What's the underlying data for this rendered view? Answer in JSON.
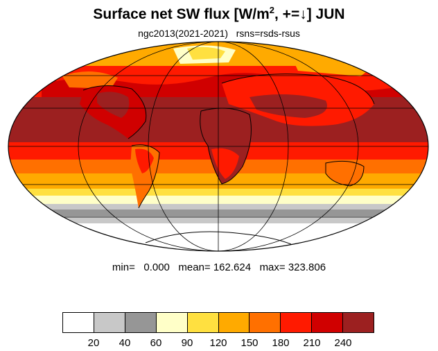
{
  "title": {
    "main": "Surface net SW flux [W/m",
    "sup": "2",
    "rest": ", +=↓]  JUN"
  },
  "subtitle": "ngc2013(2021-2021)   rsns=rsds-rsus",
  "stats": "min=   0.000   mean= 162.624   max= 323.806",
  "colorbar": {
    "colors": [
      "#ffffff",
      "#c8c8c8",
      "#969696",
      "#ffffc8",
      "#ffe040",
      "#ffaa00",
      "#ff7000",
      "#ff1a00",
      "#d00000",
      "#9c2020"
    ],
    "labels": [
      "20",
      "40",
      "60",
      "90",
      "120",
      "150",
      "180",
      "210",
      "240"
    ]
  },
  "map": {
    "projection": "mollweide",
    "ocean_band_colors": {
      "arctic": "#ffaa00",
      "north_mid": "#ff1a00",
      "tropics_north": "#9c2020",
      "equator": "#ff1a00",
      "south_tropics": "#ff7000",
      "south_mid": "#ffaa00",
      "south_subpolar": "#ffe040",
      "south_pale": "#ffffc8",
      "south_grey": "#969696",
      "south_lightgrey": "#c8c8c8",
      "antarctica": "#ffffff"
    }
  }
}
